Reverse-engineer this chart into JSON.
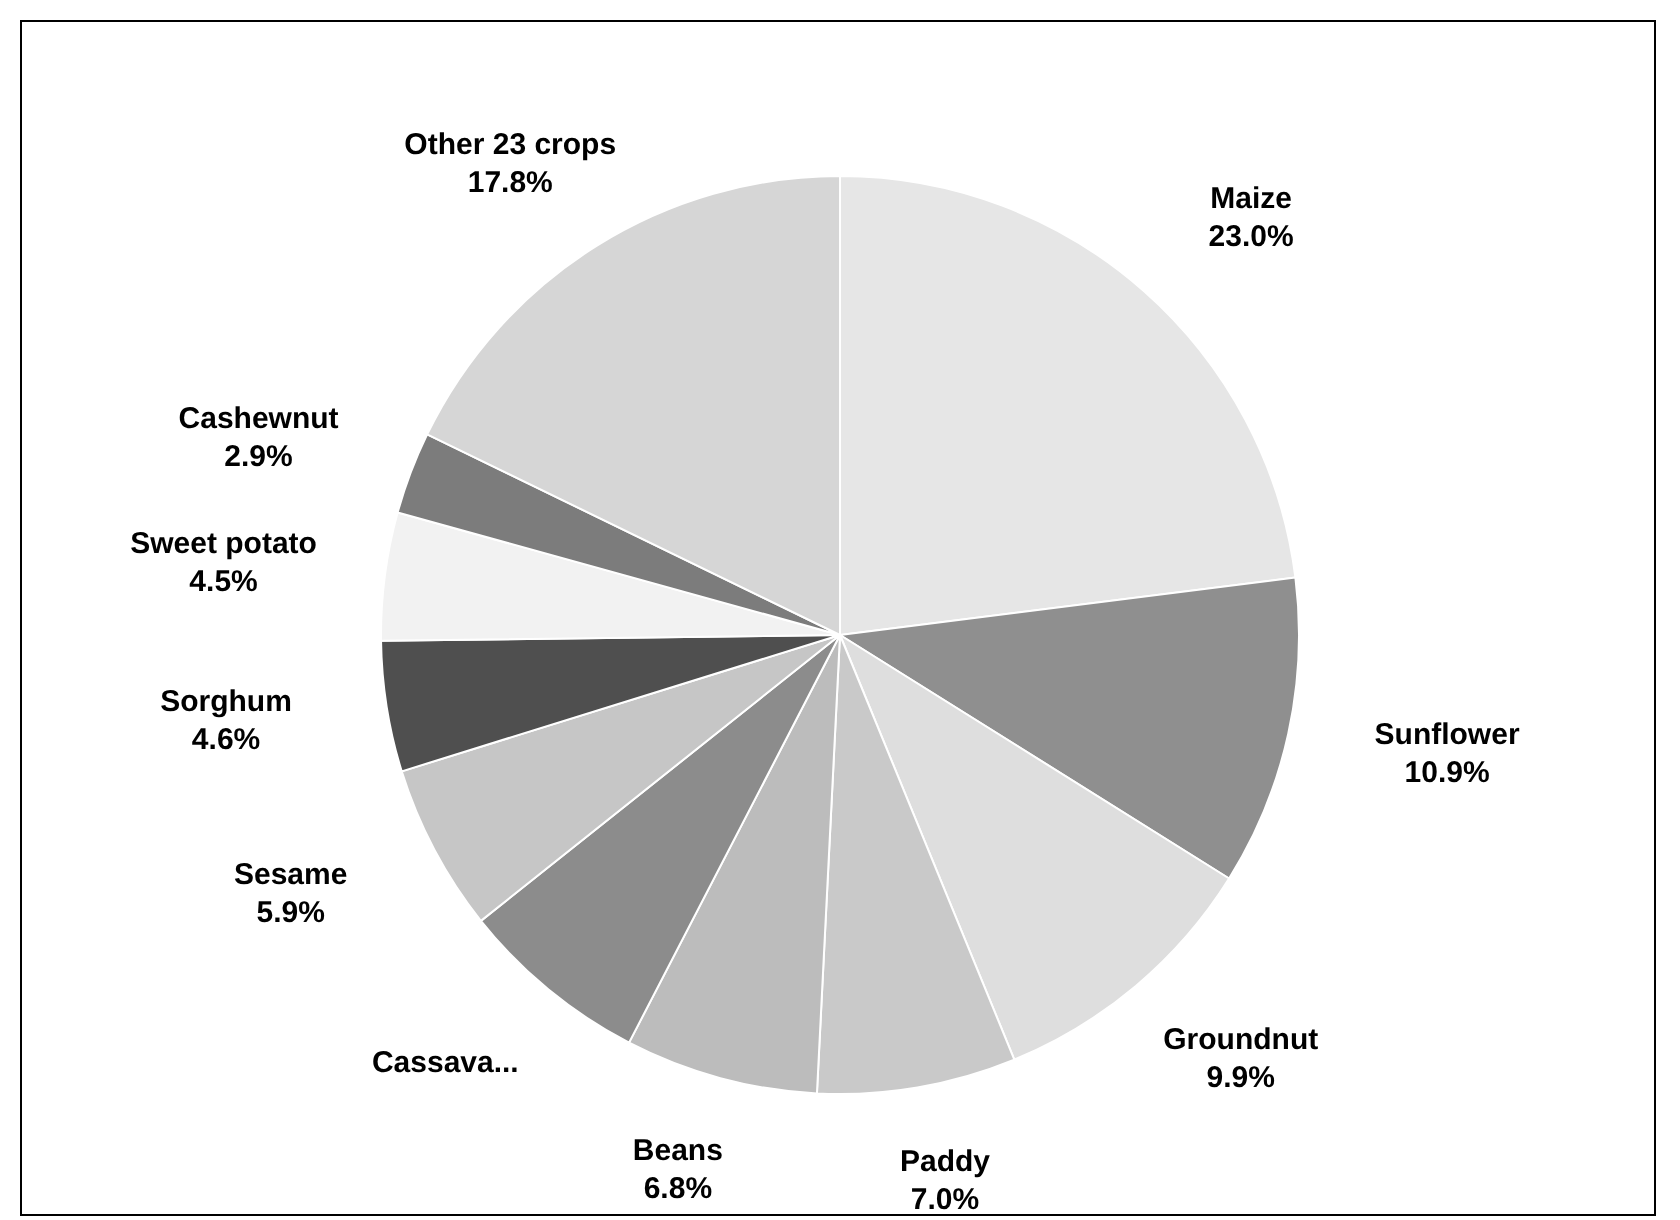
{
  "chart_data": {
    "type": "pie",
    "categories": [
      "Maize",
      "Sunflower",
      "Groundnut",
      "Paddy",
      "Beans",
      "Cassava...",
      "Sesame",
      "Sorghum",
      "Sweet potato",
      "Cashewnut",
      "Other 23 crops"
    ],
    "values": [
      23.0,
      10.9,
      9.9,
      7.0,
      6.8,
      6.7,
      5.9,
      4.6,
      4.5,
      2.9,
      17.8
    ],
    "value_labels": [
      "23.0%",
      "10.9%",
      "9.9%",
      "7.0%",
      "6.8%",
      null,
      "5.9%",
      "4.6%",
      "4.5%",
      "2.9%",
      "17.8%"
    ],
    "colors": [
      "#e6e6e6",
      "#8f8f8f",
      "#dedede",
      "#c9c9c9",
      "#bcbcbc",
      "#8c8c8c",
      "#c6c6c6",
      "#4f4f4f",
      "#f2f2f2",
      "#7c7c7c",
      "#d6d6d6"
    ],
    "legend": false
  }
}
